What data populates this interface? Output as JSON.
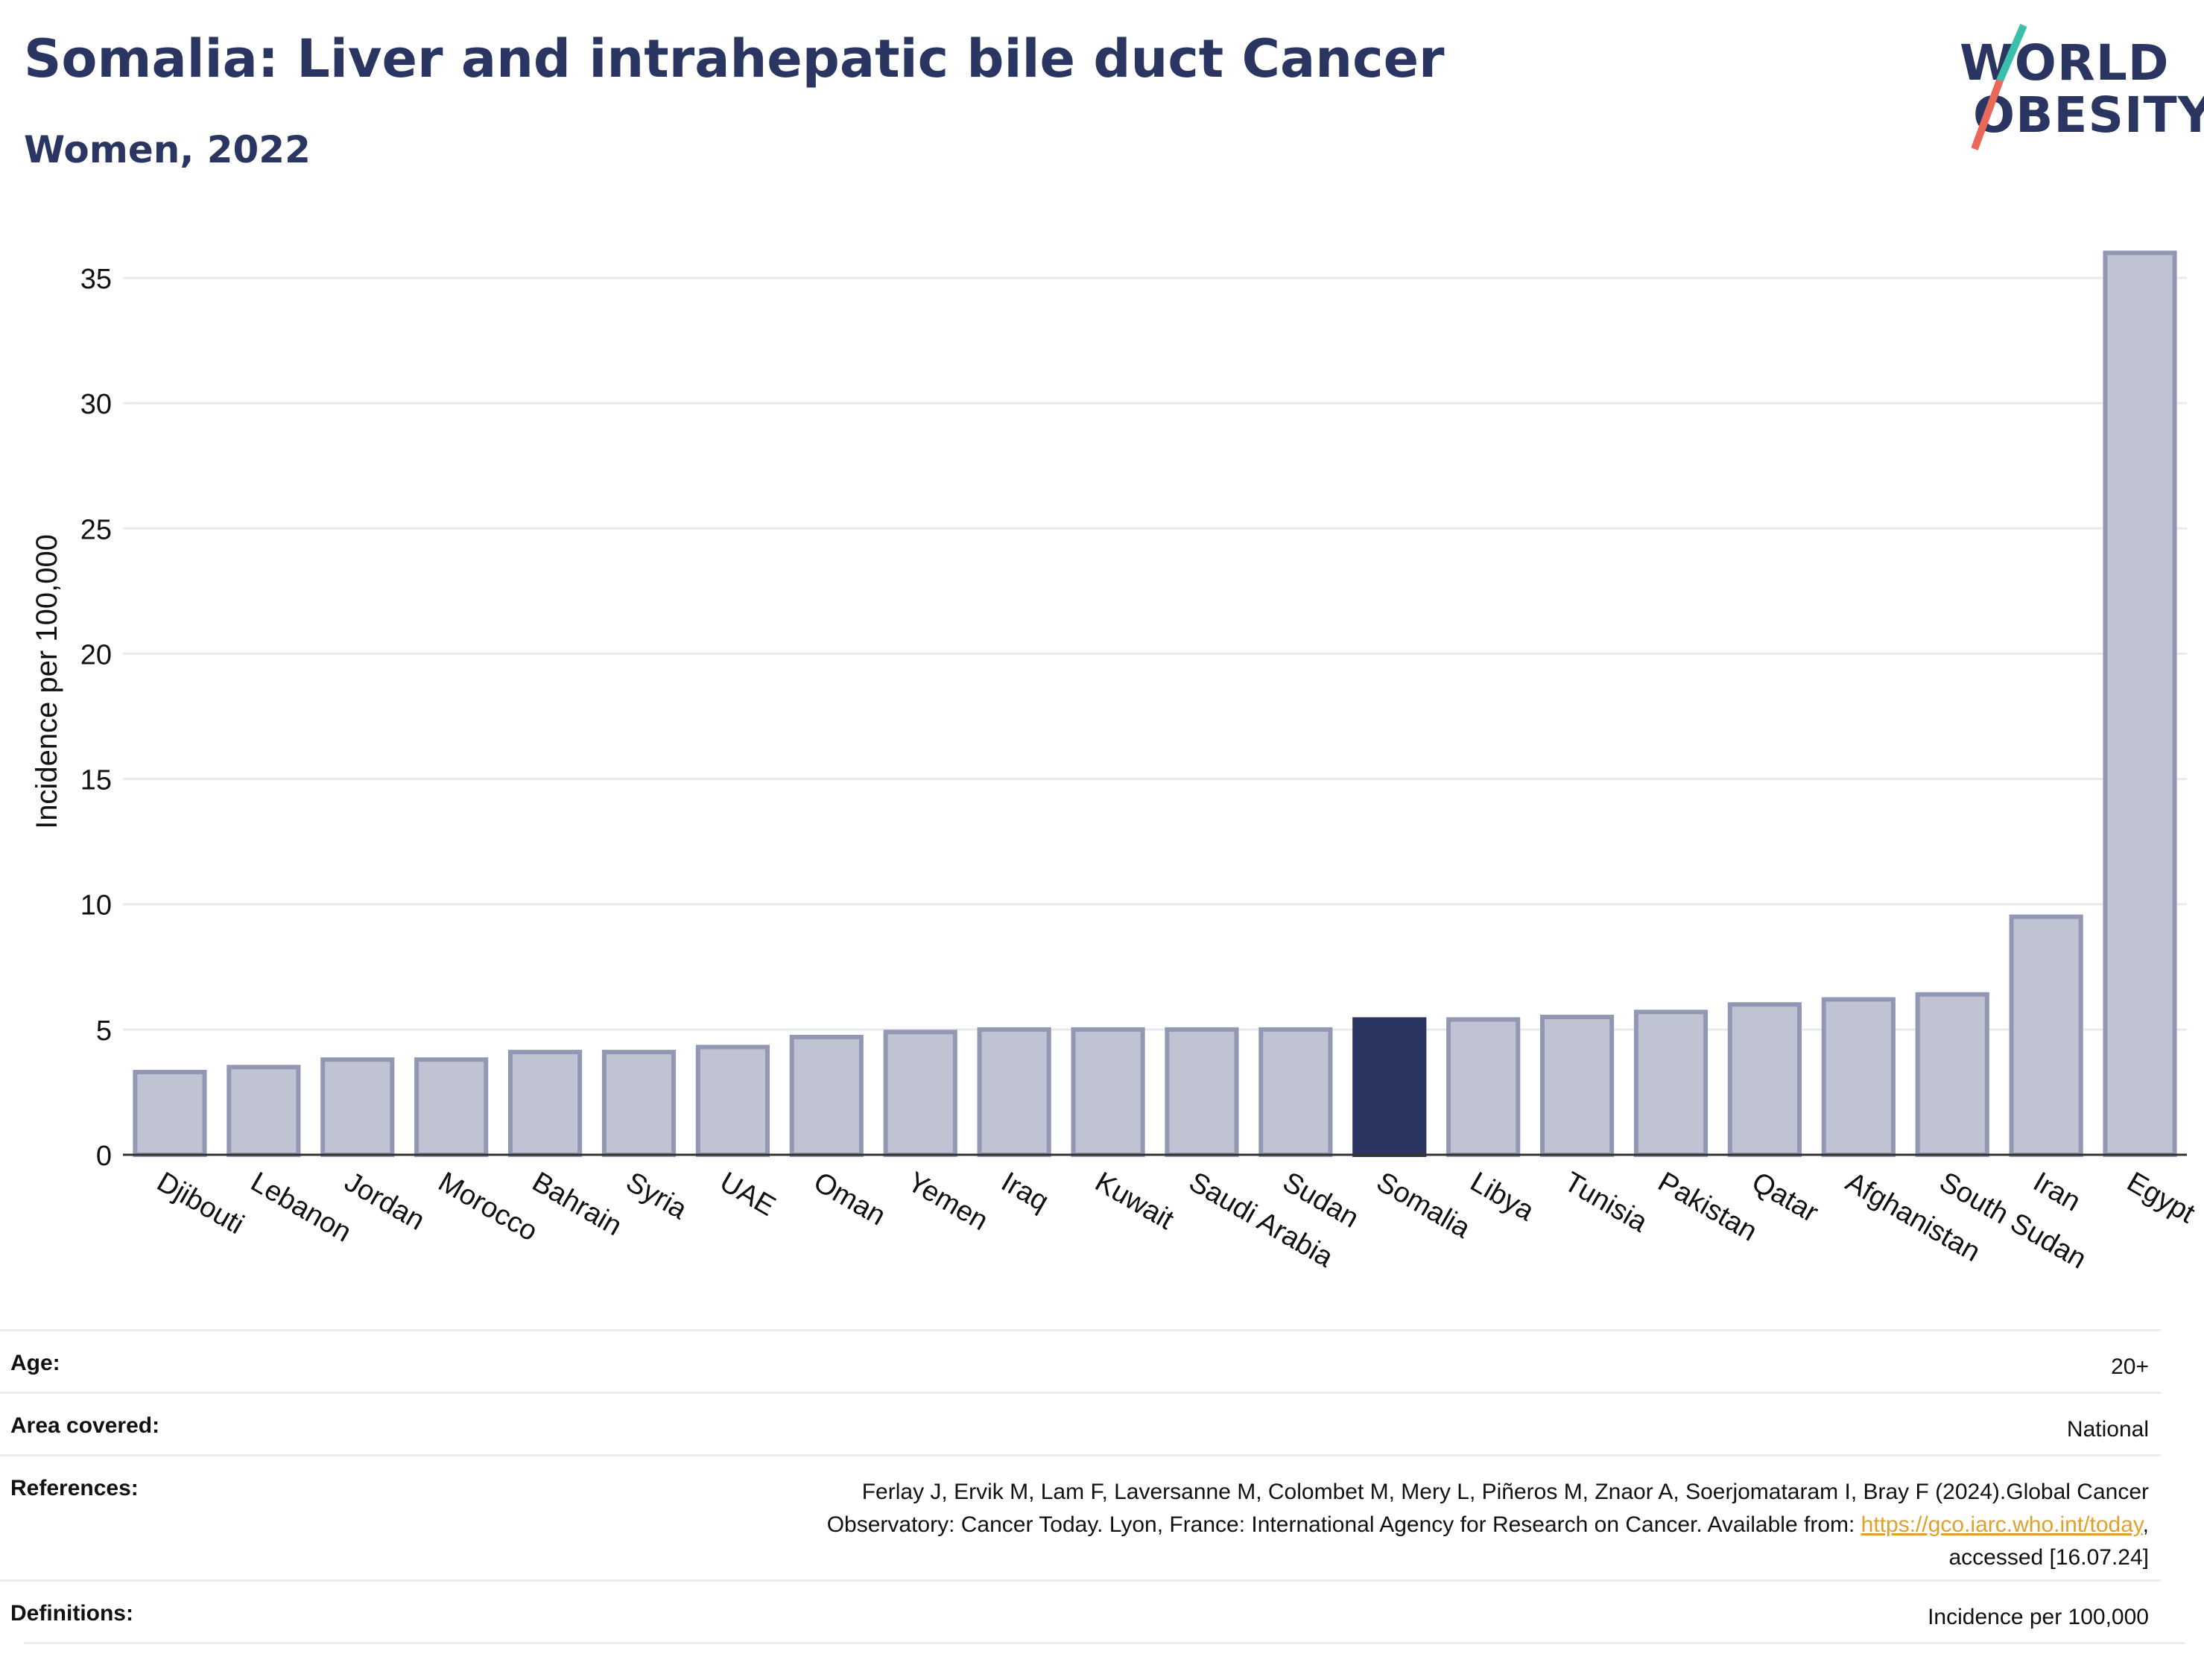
{
  "header": {
    "title": "Somalia: Liver and intrahepatic bile duct Cancer",
    "subtitle": "Women, 2022"
  },
  "logo": {
    "line1": "WORLD",
    "line2": "OBESITY",
    "colors": {
      "text": "#2b3561",
      "slash_top": "#3bbfad",
      "slash_bottom": "#e8685a"
    }
  },
  "chart_data": {
    "type": "bar",
    "categories": [
      "Djibouti",
      "Lebanon",
      "Jordan",
      "Morocco",
      "Bahrain",
      "Syria",
      "UAE",
      "Oman",
      "Yemen",
      "Iraq",
      "Kuwait",
      "Saudi Arabia",
      "Sudan",
      "Somalia",
      "Libya",
      "Tunisia",
      "Pakistan",
      "Qatar",
      "Afghanistan",
      "South Sudan",
      "Iran",
      "Egypt"
    ],
    "values": [
      3.3,
      3.5,
      3.8,
      3.8,
      4.1,
      4.1,
      4.3,
      4.7,
      4.9,
      5.0,
      5.0,
      5.0,
      5.0,
      5.4,
      5.4,
      5.5,
      5.7,
      6.0,
      6.2,
      6.4,
      9.5,
      36.0
    ],
    "highlight": "Somalia",
    "ylabel": "Incidence per 100,000",
    "xlabel": "",
    "ylim": [
      0,
      37
    ],
    "yticks": [
      0,
      5,
      10,
      15,
      20,
      25,
      30,
      35
    ],
    "grid": true,
    "colors": {
      "bar": "#c0c4d2",
      "bar_edge": "#9298b4",
      "highlight": "#2b3561",
      "grid": "#e8eaf0",
      "axis": "#333333"
    }
  },
  "meta": {
    "age_label": "Age:",
    "age_value": "20+",
    "area_label": "Area covered:",
    "area_value": "National",
    "references_label": "References:",
    "references_line1": "Ferlay J, Ervik M, Lam F, Laversanne M, Colombet M, Mery L, Piñeros M, Znaor A, Soerjomataram I, Bray F (2024).Global Cancer",
    "references_line2_prefix": "Observatory: Cancer Today. Lyon, France: International Agency for Research on Cancer. Available from: ",
    "references_link": "https://gco.iarc.who.int/today",
    "references_line2_suffix": ",",
    "references_line3": "accessed [16.07.24]",
    "definitions_label": "Definitions:",
    "definitions_value": "Incidence per 100,000"
  }
}
